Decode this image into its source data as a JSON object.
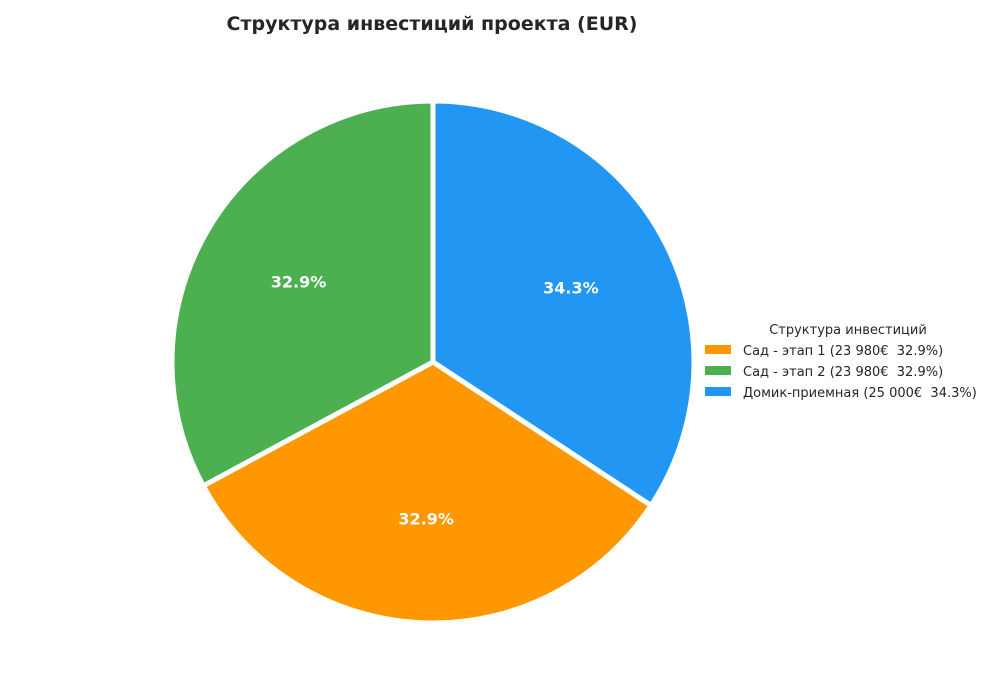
{
  "chart_data": {
    "type": "pie",
    "title": "Структура инвестиций проекта (EUR)",
    "start_angle_deg": 90,
    "direction": "clockwise",
    "slice_order": [
      2,
      0,
      1
    ],
    "slices": [
      {
        "name": "Сад - этап 1",
        "value": 23980,
        "percent_label": "32.9%",
        "legend_label": "Сад - этап 1 (23 980€  32.9%)",
        "color": "#FF9800"
      },
      {
        "name": "Сад - этап 2",
        "value": 23980,
        "percent_label": "32.9%",
        "legend_label": "Сад - этап 2 (23 980€  32.9%)",
        "color": "#4CAF50"
      },
      {
        "name": "Домик-приемная",
        "value": 25000,
        "percent_label": "34.3%",
        "legend_label": "Домик-приемная (25 000€  34.3%)",
        "color": "#2196F3"
      }
    ],
    "legend": {
      "title": "Структура инвестиций",
      "placement": "right"
    },
    "edge_color": "#ffffff"
  }
}
